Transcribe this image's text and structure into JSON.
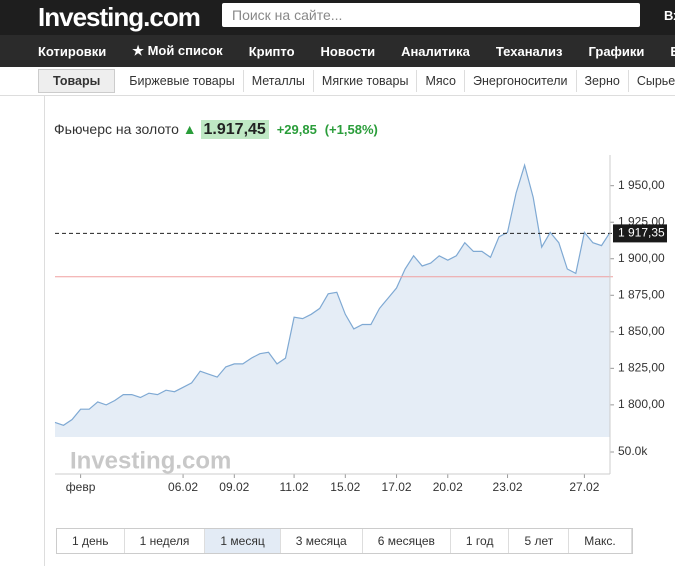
{
  "header": {
    "logo": "Investing.com",
    "search_placeholder": "Поиск на сайте...",
    "login": "Вх"
  },
  "nav": [
    "Котировки",
    "★ Мой список",
    "Крипто",
    "Новости",
    "Аналитика",
    "Теханализ",
    "Графики",
    "Бр"
  ],
  "subnav": [
    "Товары",
    "Биржевые товары",
    "Металлы",
    "Мягкие товары",
    "Мясо",
    "Энергоносители",
    "Зерно",
    "Сырьевы"
  ],
  "instrument": {
    "name": "Фьючерс на золото",
    "price": "1.917,45",
    "change": "+29,85",
    "change_pct": "(+1,58%)"
  },
  "periods": [
    "1 день",
    "1 неделя",
    "1 месяц",
    "3 месяца",
    "6 месяцев",
    "1 год",
    "5 лет",
    "Макс."
  ],
  "chart_data": {
    "type": "area",
    "watermark": "Investing.com",
    "series": [
      {
        "color": "#7fa9d3",
        "values": [
          1788,
          1786,
          1790,
          1797,
          1797,
          1802,
          1800,
          1803,
          1807,
          1807,
          1805,
          1808,
          1807,
          1810,
          1809,
          1812,
          1815,
          1823,
          1821,
          1819,
          1826,
          1828,
          1828,
          1832,
          1835,
          1836,
          1828,
          1832,
          1860,
          1859,
          1862,
          1866,
          1876,
          1877,
          1862,
          1852,
          1855,
          1855,
          1866,
          1873,
          1880,
          1893,
          1902,
          1895,
          1897,
          1902,
          1899,
          1902,
          1911,
          1905,
          1905,
          1901,
          1915,
          1918,
          1945,
          1964,
          1942,
          1908,
          1918,
          1911,
          1893,
          1890,
          1918,
          1911,
          1909,
          1918
        ]
      }
    ],
    "xlim": [
      0,
      65
    ],
    "xticks": [
      {
        "value": 3,
        "label": "февр"
      },
      {
        "value": 15,
        "label": "06.02"
      },
      {
        "value": 21,
        "label": "09.02"
      },
      {
        "value": 28,
        "label": "11.02"
      },
      {
        "value": 34,
        "label": "15.02"
      },
      {
        "value": 40,
        "label": "17.02"
      },
      {
        "value": 46,
        "label": "20.02"
      },
      {
        "value": 53,
        "label": "23.02"
      },
      {
        "value": 62,
        "label": "27.02"
      }
    ],
    "ylim": [
      1778,
      1971
    ],
    "yticks": [
      {
        "value": 1800,
        "label": "1 800,00"
      },
      {
        "value": 1825,
        "label": "1 825,00"
      },
      {
        "value": 1850,
        "label": "1 850,00"
      },
      {
        "value": 1875,
        "label": "1 875,00"
      },
      {
        "value": 1900,
        "label": "1 900,00"
      },
      {
        "value": 1925,
        "label": "1 925,00"
      },
      {
        "value": 1950,
        "label": "1 950,00"
      }
    ],
    "last_value": {
      "value": 1917.35,
      "label": "1 917,35"
    },
    "reference_line": {
      "value": 1887.7,
      "color": "#f0a0a0"
    },
    "y2lim": [
      0,
      60000
    ],
    "y2ticks": [
      {
        "value": 50000,
        "label": "50.0k"
      }
    ]
  }
}
